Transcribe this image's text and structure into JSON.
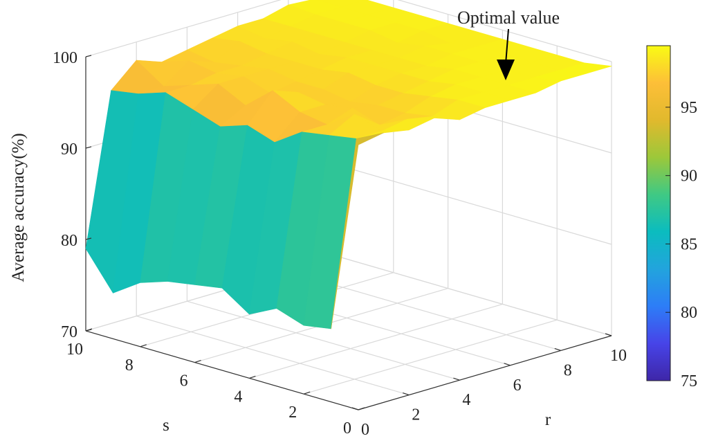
{
  "chart_data": {
    "type": "surface",
    "title": "",
    "xlabel": "r",
    "ylabel": "s",
    "zlabel": "Average accuracy(%)",
    "xlim": [
      0,
      10
    ],
    "ylim": [
      0,
      10
    ],
    "zlim": [
      70,
      100
    ],
    "x_ticks": [
      "0",
      "2",
      "4",
      "6",
      "8",
      "10"
    ],
    "y_ticks": [
      "0",
      "2",
      "4",
      "6",
      "8",
      "10"
    ],
    "z_ticks": [
      "70",
      "80",
      "90",
      "100"
    ],
    "grid": true,
    "annotation": {
      "text": "Optimal value",
      "r": 8,
      "s": 10,
      "z": 99.2
    },
    "colorbar": {
      "min": 75,
      "max": 99.5,
      "ticks": [
        "75",
        "80",
        "85",
        "90",
        "95"
      ],
      "colormap": [
        "#3e26a8",
        "#4744e8",
        "#2d7df7",
        "#22a4dd",
        "#0bbcbf",
        "#3fc984",
        "#9cc83a",
        "#e1b92d",
        "#fdbf38",
        "#f9fb14"
      ]
    },
    "r_values": [
      0,
      1,
      2,
      3,
      4,
      5,
      6,
      7,
      8,
      9,
      10
    ],
    "s_values": [
      0,
      1,
      2,
      3,
      4,
      5,
      6,
      7,
      8,
      9,
      10
    ],
    "z_values": [
      [
        99.0,
        78.0,
        77.5,
        78.5,
        77.0,
        79.0,
        78.5,
        78.0,
        77.0,
        75.0,
        79.0
      ],
      [
        99.5,
        98.0,
        97.5,
        97.0,
        95.0,
        96.0,
        95.0,
        96.0,
        97.0,
        96.0,
        95.5
      ],
      [
        99.0,
        98.0,
        99.0,
        97.0,
        97.5,
        99.0,
        96.5,
        98.0,
        97.0,
        96.0,
        98.0
      ],
      [
        99.5,
        98.5,
        97.0,
        98.0,
        97.5,
        98.0,
        97.0,
        98.0,
        97.5,
        98.0,
        97.0
      ],
      [
        98.5,
        98.0,
        97.5,
        97.5,
        97.0,
        97.5,
        97.5,
        98.0,
        97.5,
        97.0,
        97.5
      ],
      [
        99.0,
        99.0,
        98.5,
        98.0,
        98.0,
        98.5,
        98.0,
        98.0,
        98.0,
        98.5,
        98.0
      ],
      [
        99.0,
        99.0,
        99.0,
        98.5,
        98.5,
        98.5,
        98.5,
        98.0,
        98.5,
        98.0,
        98.5
      ],
      [
        99.0,
        99.0,
        99.0,
        99.0,
        98.5,
        98.5,
        98.5,
        98.5,
        98.5,
        98.5,
        98.5
      ],
      [
        99.5,
        99.0,
        99.0,
        99.0,
        99.0,
        99.0,
        98.5,
        99.0,
        99.0,
        99.0,
        99.2
      ],
      [
        99.5,
        99.0,
        99.0,
        99.0,
        99.0,
        98.5,
        99.0,
        99.0,
        99.0,
        99.0,
        99.0
      ],
      [
        99.5,
        99.0,
        99.0,
        99.0,
        99.0,
        99.0,
        99.0,
        99.0,
        99.0,
        99.0,
        99.0
      ]
    ]
  }
}
